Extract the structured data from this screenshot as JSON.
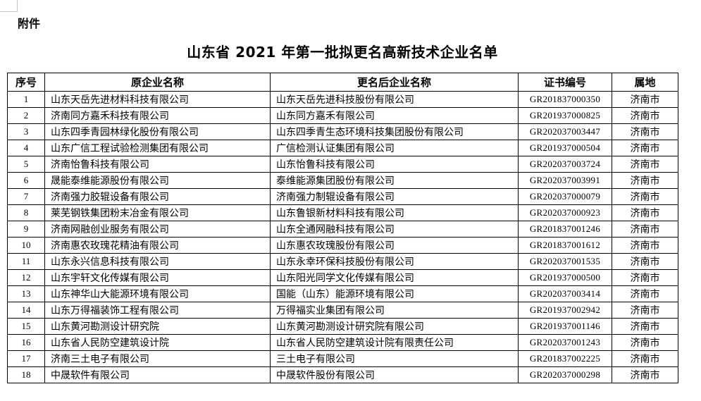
{
  "page": {
    "attachment_label": "附件",
    "title": "山东省 2021 年第一批拟更名高新技术企业名单"
  },
  "table": {
    "headers": [
      "序号",
      "原企业名称",
      "更名后企业名称",
      "证书编号",
      "属地"
    ],
    "rows": [
      {
        "no": "1",
        "original": "山东天岳先进材料科技有限公司",
        "renamed": "山东天岳先进科技股份有限公司",
        "cert": "GR201837000350",
        "region": "济南市"
      },
      {
        "no": "2",
        "original": "济南同方嘉禾科技有限公司",
        "renamed": "山东同方嘉禾有限公司",
        "cert": "GR201937000825",
        "region": "济南市"
      },
      {
        "no": "3",
        "original": "山东四季青园林绿化股份有限公司",
        "renamed": "山东四季青生态环境科技集团股份有限公司",
        "cert": "GR202037003447",
        "region": "济南市"
      },
      {
        "no": "4",
        "original": "山东广信工程试验检测集团有限公司",
        "renamed": "广信检测认证集团有限公司",
        "cert": "GR201937000504",
        "region": "济南市"
      },
      {
        "no": "5",
        "original": "济南怡鲁科技有限公司",
        "renamed": "山东怡鲁科技有限公司",
        "cert": "GR202037003724",
        "region": "济南市"
      },
      {
        "no": "6",
        "original": "晟能泰维能源股份有限公司",
        "renamed": "泰维能源集团股份有限公司",
        "cert": "GR202037003991",
        "region": "济南市"
      },
      {
        "no": "7",
        "original": "济南强力胶辊设备有限公司",
        "renamed": "济南强力制辊设备有限公司",
        "cert": "GR202037000079",
        "region": "济南市"
      },
      {
        "no": "8",
        "original": "莱芜钢铁集团粉末冶金有限公司",
        "renamed": "山东鲁银新材料科技有限公司",
        "cert": "GR202037000923",
        "region": "济南市"
      },
      {
        "no": "9",
        "original": "济南网融创业服务有限公司",
        "renamed": "山东全通网融科技有限公司",
        "cert": "GR201837001246",
        "region": "济南市"
      },
      {
        "no": "10",
        "original": "济南惠农玫瑰花精油有限公司",
        "renamed": "山东惠农玫瑰股份有限公司",
        "cert": "GR201837001612",
        "region": "济南市"
      },
      {
        "no": "11",
        "original": "山东永兴信息科技有限公司",
        "renamed": "山东永幸环保科技股份有限公司",
        "cert": "GR202037001535",
        "region": "济南市"
      },
      {
        "no": "12",
        "original": "山东宇轩文化传媒有限公司",
        "renamed": "山东阳光同学文化传媒有限公司",
        "cert": "GR201937000500",
        "region": "济南市"
      },
      {
        "no": "13",
        "original": "山东神华山大能源环境有限公司",
        "renamed": "国能（山东）能源环境有限公司",
        "cert": "GR202037003414",
        "region": "济南市"
      },
      {
        "no": "14",
        "original": "山东万得福装饰工程有限公司",
        "renamed": "万得福实业集团有限公司",
        "cert": "GR201937002942",
        "region": "济南市"
      },
      {
        "no": "15",
        "original": "山东黄河勘测设计研究院",
        "renamed": "山东黄河勘测设计研究院有限公司",
        "cert": "GR201937001146",
        "region": "济南市"
      },
      {
        "no": "16",
        "original": "山东省人民防空建筑设计院",
        "renamed": "山东省人民防空建筑设计院有限责任公司",
        "cert": "GR202037001243",
        "region": "济南市"
      },
      {
        "no": "17",
        "original": "济南三土电子有限公司",
        "renamed": "三土电子有限公司",
        "cert": "GR201837002225",
        "region": "济南市"
      },
      {
        "no": "18",
        "original": "中晟软件有限公司",
        "renamed": "中晟软件股份有限公司",
        "cert": "GR202037000298",
        "region": "济南市"
      }
    ]
  }
}
